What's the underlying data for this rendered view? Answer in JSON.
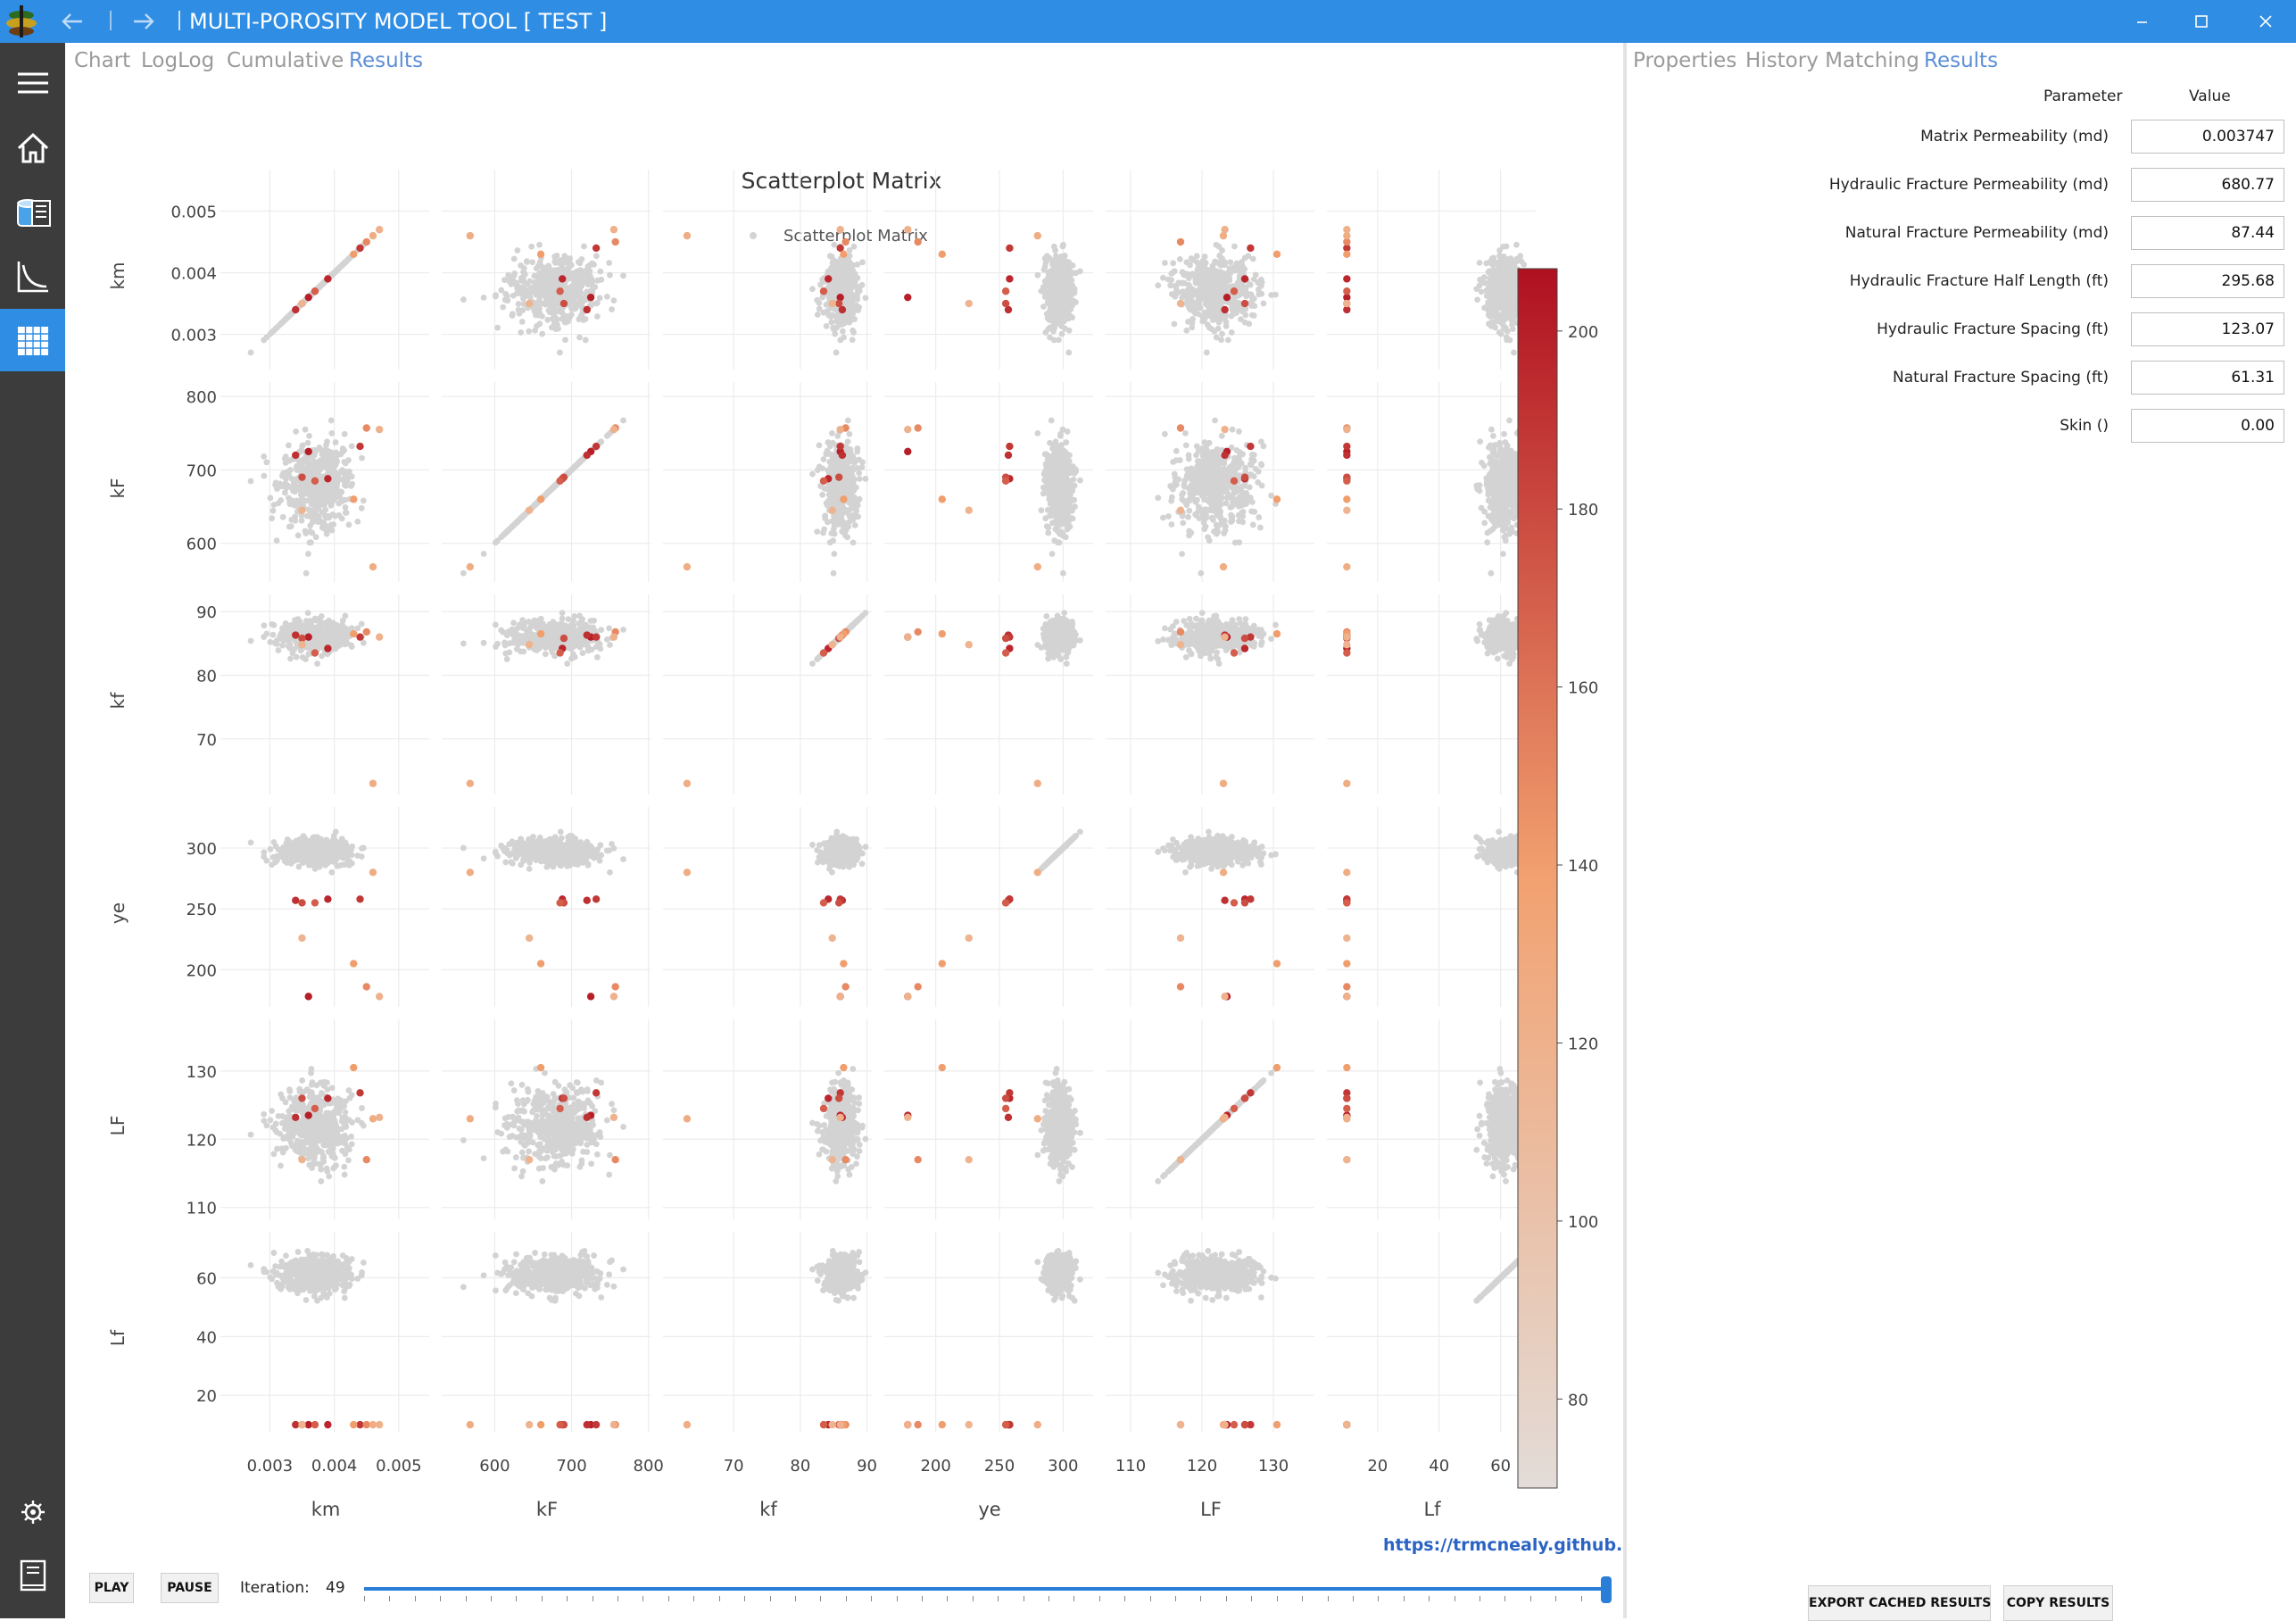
{
  "app": {
    "title": "MULTI-POROSITY MODEL TOOL [ TEST ]",
    "accent": "#2f8de4",
    "back_icon": "arrow-left-icon",
    "forward_icon": "arrow-right-icon"
  },
  "sidebar": {
    "items": [
      {
        "icon": "hamburger-menu-icon"
      },
      {
        "icon": "home-icon"
      },
      {
        "icon": "database-icon"
      },
      {
        "icon": "chart-curve-icon"
      },
      {
        "icon": "grid-table-icon",
        "active": true
      },
      {
        "icon": "gear-icon"
      },
      {
        "icon": "notebook-icon"
      }
    ]
  },
  "left_tabs": [
    {
      "label": "Chart"
    },
    {
      "label": "LogLog"
    },
    {
      "label": "Cumulative"
    },
    {
      "label": "Results",
      "active": true
    }
  ],
  "right_tabs": [
    {
      "label": "Properties"
    },
    {
      "label": "History Matching"
    },
    {
      "label": "Results",
      "active": true
    }
  ],
  "params": {
    "header_param": "Parameter",
    "header_value": "Value",
    "rows": [
      {
        "label": "Matrix Permeability (md)",
        "value": "0.003747"
      },
      {
        "label": "Hydraulic Fracture Permeability (md)",
        "value": "680.77"
      },
      {
        "label": "Natural Fracture Permeability (md)",
        "value": "87.44"
      },
      {
        "label": "Hydraulic Fracture Half Length (ft)",
        "value": "295.68"
      },
      {
        "label": "Hydraulic Fracture Spacing (ft)",
        "value": "123.07"
      },
      {
        "label": "Natural Fracture Spacing (ft)",
        "value": "61.31"
      },
      {
        "label": "Skin ()",
        "value": "0.00"
      }
    ]
  },
  "buttons": {
    "export": "EXPORT CACHED RESULTS",
    "copy": "COPY RESULTS",
    "play": "PLAY",
    "pause": "PAUSE"
  },
  "iteration": {
    "label": "Iteration:",
    "value": "49",
    "progress": 1.0
  },
  "link": "https://trmcnealy.github.io »",
  "chart_data": {
    "type": "scatter",
    "title": "Scatterplot Matrix",
    "legend": [
      "Scatterplot Matrix"
    ],
    "legend_placement": "top-center",
    "variables": [
      {
        "name": "km",
        "ticks": [
          "0.003",
          "0.004",
          "0.005"
        ],
        "tick_values": [
          0.003,
          0.004,
          0.005
        ],
        "range": [
          0.0024,
          0.0055
        ]
      },
      {
        "name": "kF",
        "ticks": [
          "600",
          "700",
          "800"
        ],
        "tick_values": [
          600,
          700,
          800
        ],
        "range": [
          545,
          805
        ]
      },
      {
        "name": "kf",
        "ticks": [
          "70",
          "80",
          "90"
        ],
        "tick_values": [
          70,
          80,
          90
        ],
        "range": [
          61,
          91
        ]
      },
      {
        "name": "ye",
        "ticks": [
          "200",
          "250",
          "300"
        ],
        "tick_values": [
          200,
          250,
          300
        ],
        "range": [
          168,
          325
        ]
      },
      {
        "name": "LF",
        "ticks": [
          "110",
          "120",
          "130"
        ],
        "tick_values": [
          110,
          120,
          130
        ],
        "range": [
          108,
          136
        ]
      },
      {
        "name": "Lf",
        "ticks": [
          "20",
          "40",
          "60"
        ],
        "tick_values": [
          20,
          40,
          60
        ],
        "range": [
          7,
          72
        ]
      }
    ],
    "cloud": {
      "center": [
        0.00372,
        680,
        86,
        297,
        122,
        61
      ],
      "spread": [
        0.00027,
        30,
        1.2,
        5,
        2.8,
        3
      ],
      "points": 500,
      "color": "#d3d3d3"
    },
    "highlighted": [
      [
        0.0036,
        725,
        86.0,
        178,
        123.5,
        10,
        200
      ],
      [
        0.0039,
        688,
        84.2,
        258,
        126.0,
        10,
        196
      ],
      [
        0.0034,
        720,
        86.3,
        257,
        123.2,
        10,
        192
      ],
      [
        0.0044,
        732,
        86.0,
        258,
        126.8,
        10,
        188
      ],
      [
        0.0035,
        690,
        85.8,
        255,
        126.0,
        10,
        178
      ],
      [
        0.0037,
        685,
        83.5,
        255,
        124.5,
        10,
        170
      ],
      [
        0.0045,
        757,
        86.8,
        186,
        117.0,
        10,
        150
      ],
      [
        0.0043,
        660,
        86.5,
        205,
        130.5,
        10,
        140
      ],
      [
        0.0046,
        568,
        63.0,
        280,
        123.0,
        10,
        125
      ],
      [
        0.0047,
        755,
        86.0,
        178,
        123.2,
        10,
        120
      ],
      [
        0.0035,
        645,
        84.8,
        226,
        117.0,
        10,
        118
      ]
    ],
    "colorscale": {
      "min": 70,
      "max": 207,
      "ticks": [
        80,
        100,
        120,
        140,
        160,
        180,
        200
      ],
      "low_color": "#e3dcd8",
      "mid_color": "#f2a170",
      "high_color": "#b01020"
    }
  }
}
